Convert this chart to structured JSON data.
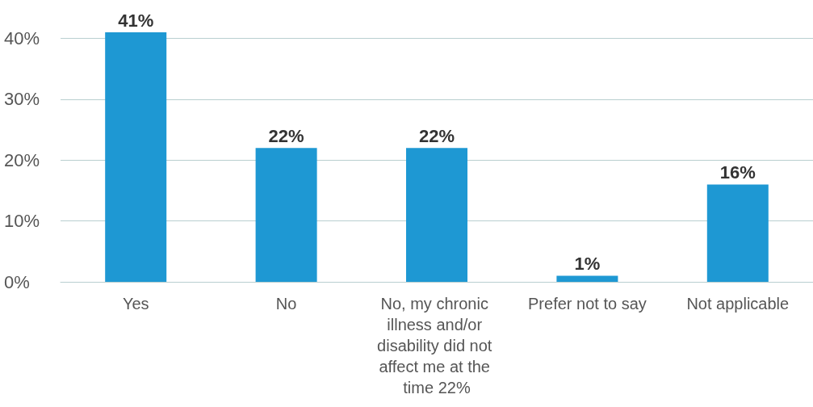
{
  "chart_data": {
    "type": "bar",
    "categories": [
      "Yes",
      "No",
      "No, my chronic illness and/or disability did not affect me at the time 22%",
      "Prefer not to say",
      "Not applicable"
    ],
    "values": [
      41,
      22,
      22,
      1,
      16
    ],
    "color": "#1e98d3",
    "value_labels": [
      "41%",
      "22%",
      "22%",
      "1%",
      "16%"
    ],
    "yticks": [
      {
        "value": 0,
        "label": "0%"
      },
      {
        "value": 10,
        "label": "10%"
      },
      {
        "value": 20,
        "label": "20%"
      },
      {
        "value": 30,
        "label": "30%"
      },
      {
        "value": 40,
        "label": "40%"
      }
    ],
    "ylim": [
      0,
      41
    ],
    "grid": "y"
  }
}
